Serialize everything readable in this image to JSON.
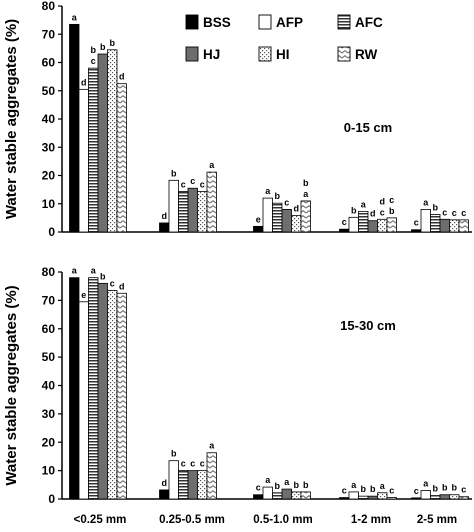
{
  "chart_data": [
    {
      "type": "bar",
      "panel": "0-15 cm",
      "annotation": "0-15 cm",
      "ylabel": "Water stable aggregates (%)",
      "ylim": [
        0,
        80
      ],
      "yticks": [
        0,
        10,
        20,
        30,
        40,
        50,
        60,
        70,
        80
      ],
      "categories": [
        "<0.25 mm",
        "0.25-0.5 mm",
        "0.5-1.0 mm",
        "1-2 mm",
        "2-5 mm"
      ],
      "legend_position": "top-right",
      "series": [
        {
          "name": "BSS",
          "values": [
            73.5,
            3.2,
            2.0,
            1.0,
            0.8
          ],
          "letters": [
            "a",
            "d",
            "e",
            "c",
            "c"
          ]
        },
        {
          "name": "AFP",
          "values": [
            50.5,
            18.3,
            12.0,
            5.2,
            8.0
          ],
          "letters": [
            "d",
            "b",
            "a",
            "b",
            "a"
          ]
        },
        {
          "name": "AFC",
          "values": [
            58.0,
            14.3,
            10.2,
            7.3,
            6.2
          ],
          "letters": [
            "c",
            "c",
            "b",
            "a",
            "b"
          ]
        },
        {
          "name": "HJ",
          "values": [
            63.0,
            15.5,
            8.0,
            4.0,
            4.5
          ],
          "letters": [
            "b",
            "c",
            "c",
            "d",
            "c"
          ]
        },
        {
          "name": "HI",
          "values": [
            64.5,
            14.3,
            5.8,
            4.5,
            4.3
          ],
          "letters": [
            "b",
            "c",
            "d",
            "c",
            "c"
          ]
        },
        {
          "name": "RW",
          "values": [
            52.5,
            21.2,
            11.0,
            5.0,
            4.3
          ],
          "letters": [
            "d",
            "a",
            "a",
            "b",
            "c"
          ]
        }
      ],
      "letter_labels_top": [
        null,
        null,
        null,
        null,
        null
      ],
      "extra_letters": [
        {
          "category": 0,
          "series": 2,
          "text": "b"
        },
        {
          "category": 2,
          "series": 5,
          "text": "b"
        },
        {
          "category": 3,
          "series": 4,
          "text": "d"
        },
        {
          "category": 3,
          "series": 5,
          "text": "c"
        }
      ]
    },
    {
      "type": "bar",
      "panel": "15-30 cm",
      "annotation": "15-30 cm",
      "ylabel": "Water stable aggregates (%)",
      "ylim": [
        0,
        80
      ],
      "yticks": [
        0,
        10,
        20,
        30,
        40,
        50,
        60,
        70,
        80
      ],
      "categories": [
        "<0.25 mm",
        "0.25-0.5 mm",
        "0.5-1.0 mm",
        "1-2 mm",
        "2-5 mm"
      ],
      "series": [
        {
          "name": "BSS",
          "values": [
            78.0,
            3.2,
            1.5,
            0.5,
            0.4
          ],
          "letters": [
            "a",
            "d",
            "c",
            "c",
            "c"
          ]
        },
        {
          "name": "AFP",
          "values": [
            69.5,
            13.5,
            4.2,
            2.5,
            3.0
          ],
          "letters": [
            "e",
            "b",
            "a",
            "a",
            "a"
          ]
        },
        {
          "name": "AFC",
          "values": [
            78.0,
            10.0,
            2.2,
            1.0,
            1.2
          ],
          "letters": [
            "a",
            "c",
            "b",
            "b",
            "b"
          ]
        },
        {
          "name": "HJ",
          "values": [
            76.0,
            10.0,
            3.5,
            1.0,
            1.5
          ],
          "letters": [
            "b",
            "c",
            "a",
            "b",
            "b"
          ]
        },
        {
          "name": "HI",
          "values": [
            73.5,
            10.0,
            2.5,
            2.2,
            1.5
          ],
          "letters": [
            "c",
            "c",
            "b",
            "a",
            "b"
          ]
        },
        {
          "name": "RW",
          "values": [
            72.5,
            16.3,
            2.5,
            0.5,
            0.8
          ],
          "letters": [
            "d",
            "a",
            "b",
            "c",
            "c"
          ]
        }
      ]
    }
  ],
  "legend": [
    "BSS",
    "AFP",
    "AFC",
    "HJ",
    "HI",
    "RW"
  ],
  "colors": {
    "BSS": "#000000",
    "AFP": "#ffffff",
    "AFC": "#444444",
    "HJ": "#6e6e6e",
    "HI": "#ffffff",
    "RW": "#bdbdbd"
  }
}
